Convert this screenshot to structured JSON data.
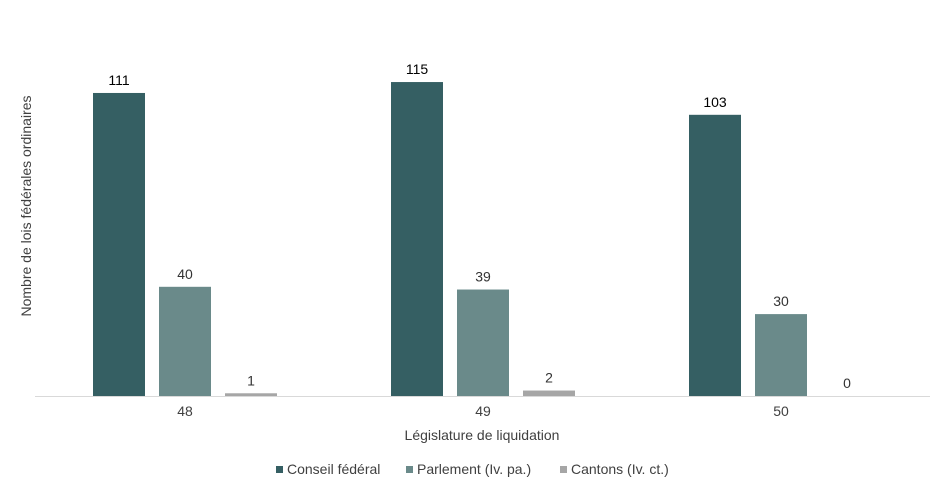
{
  "chart_data": {
    "type": "bar",
    "categories": [
      "48",
      "49",
      "50"
    ],
    "series": [
      {
        "name": "Conseil fédéral",
        "values": [
          111,
          115,
          103
        ],
        "color": "#355f63"
      },
      {
        "name": "Parlement (Iv. pa.)",
        "values": [
          40,
          39,
          30
        ],
        "color": "#6a8a8a"
      },
      {
        "name": "Cantons (Iv. ct.)",
        "values": [
          1,
          2,
          0
        ],
        "color": "#a6a6a6"
      }
    ],
    "xlabel": "Législature de liquidation",
    "ylabel": "Nombre de lois fédérales ordinaires",
    "ylim": [
      0,
      120
    ],
    "grid": false,
    "legend_position": "bottom"
  }
}
